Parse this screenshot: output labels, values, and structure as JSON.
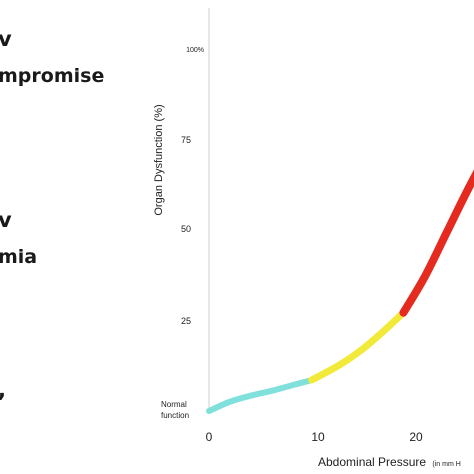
{
  "left_panel": {
    "lines": [
      {
        "text": "v"
      },
      {
        "text": "mpromise"
      },
      {
        "text": "v"
      },
      {
        "text": "mia"
      },
      {
        "text": ","
      }
    ]
  },
  "chart_data": {
    "type": "line",
    "title": "",
    "xlabel": "Abdominal Pressure",
    "xlabel_unit": "(in mm H",
    "ylabel": "Organ Dysfunction (%)",
    "xlim": [
      0,
      28
    ],
    "ylim": [
      0,
      100
    ],
    "x_ticks": [
      {
        "value": 0,
        "label": "0"
      },
      {
        "value": 10,
        "label": "10"
      },
      {
        "value": 20,
        "label": "20"
      }
    ],
    "y_ticks": [
      {
        "value": 25,
        "label": "25"
      },
      {
        "value": 50,
        "label": "50"
      },
      {
        "value": 75,
        "label": "75"
      },
      {
        "value": 100,
        "label": "100%"
      }
    ],
    "annotations": [
      {
        "text": "Normal",
        "x": 0,
        "y": 0
      },
      {
        "text": "function",
        "x": 0,
        "y": 0
      }
    ],
    "grid": false,
    "legend": "none",
    "segments": [
      {
        "color": "#7fe0dc",
        "x": [
          0,
          2,
          4,
          6,
          8,
          9.5
        ],
        "y": [
          0,
          2.6,
          4.3,
          5.7,
          7.3,
          8.5
        ]
      },
      {
        "color": "#f2ea3a",
        "x": [
          9.5,
          12,
          14,
          16,
          18
        ],
        "y": [
          8.5,
          12.5,
          16.5,
          21.5,
          27
        ]
      },
      {
        "color": "#e52b1f",
        "x": [
          18,
          20,
          22,
          24,
          26,
          28
        ],
        "y": [
          27,
          37,
          49,
          61,
          72,
          82
        ]
      }
    ]
  }
}
